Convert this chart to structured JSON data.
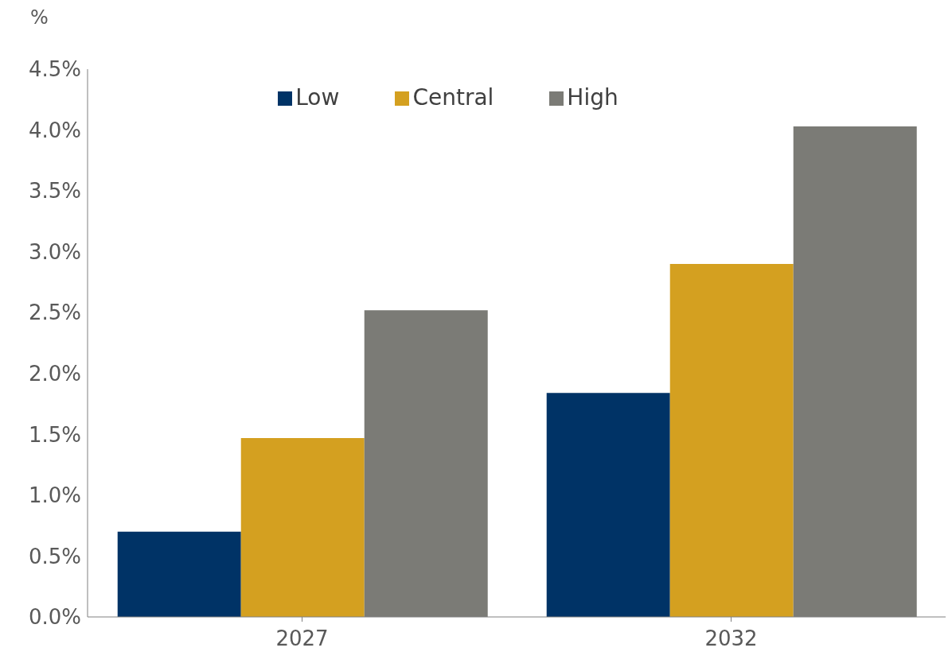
{
  "chart_data": {
    "type": "bar",
    "ylabel": "%",
    "categories": [
      "2027",
      "2032"
    ],
    "series": [
      {
        "name": "Low",
        "color": "#003366",
        "values": [
          0.7,
          1.84
        ]
      },
      {
        "name": "Central",
        "color": "#d4a020",
        "values": [
          1.47,
          2.9
        ]
      },
      {
        "name": "High",
        "color": "#7b7b76",
        "values": [
          2.52,
          4.03
        ]
      }
    ],
    "ylim": [
      0,
      4.5
    ],
    "yticks": [
      {
        "value": 0,
        "label": "0.0%"
      },
      {
        "value": 0.5,
        "label": "0.5%"
      },
      {
        "value": 1,
        "label": "1.0%"
      },
      {
        "value": 1.5,
        "label": "1.5%"
      },
      {
        "value": 2,
        "label": "2.0%"
      },
      {
        "value": 2.5,
        "label": "2.5%"
      },
      {
        "value": 3,
        "label": "3.0%"
      },
      {
        "value": 3.5,
        "label": "3.5%"
      },
      {
        "value": 4,
        "label": "4.0%"
      },
      {
        "value": 4.5,
        "label": "4.5%"
      }
    ],
    "grid": false,
    "legend": "top"
  }
}
